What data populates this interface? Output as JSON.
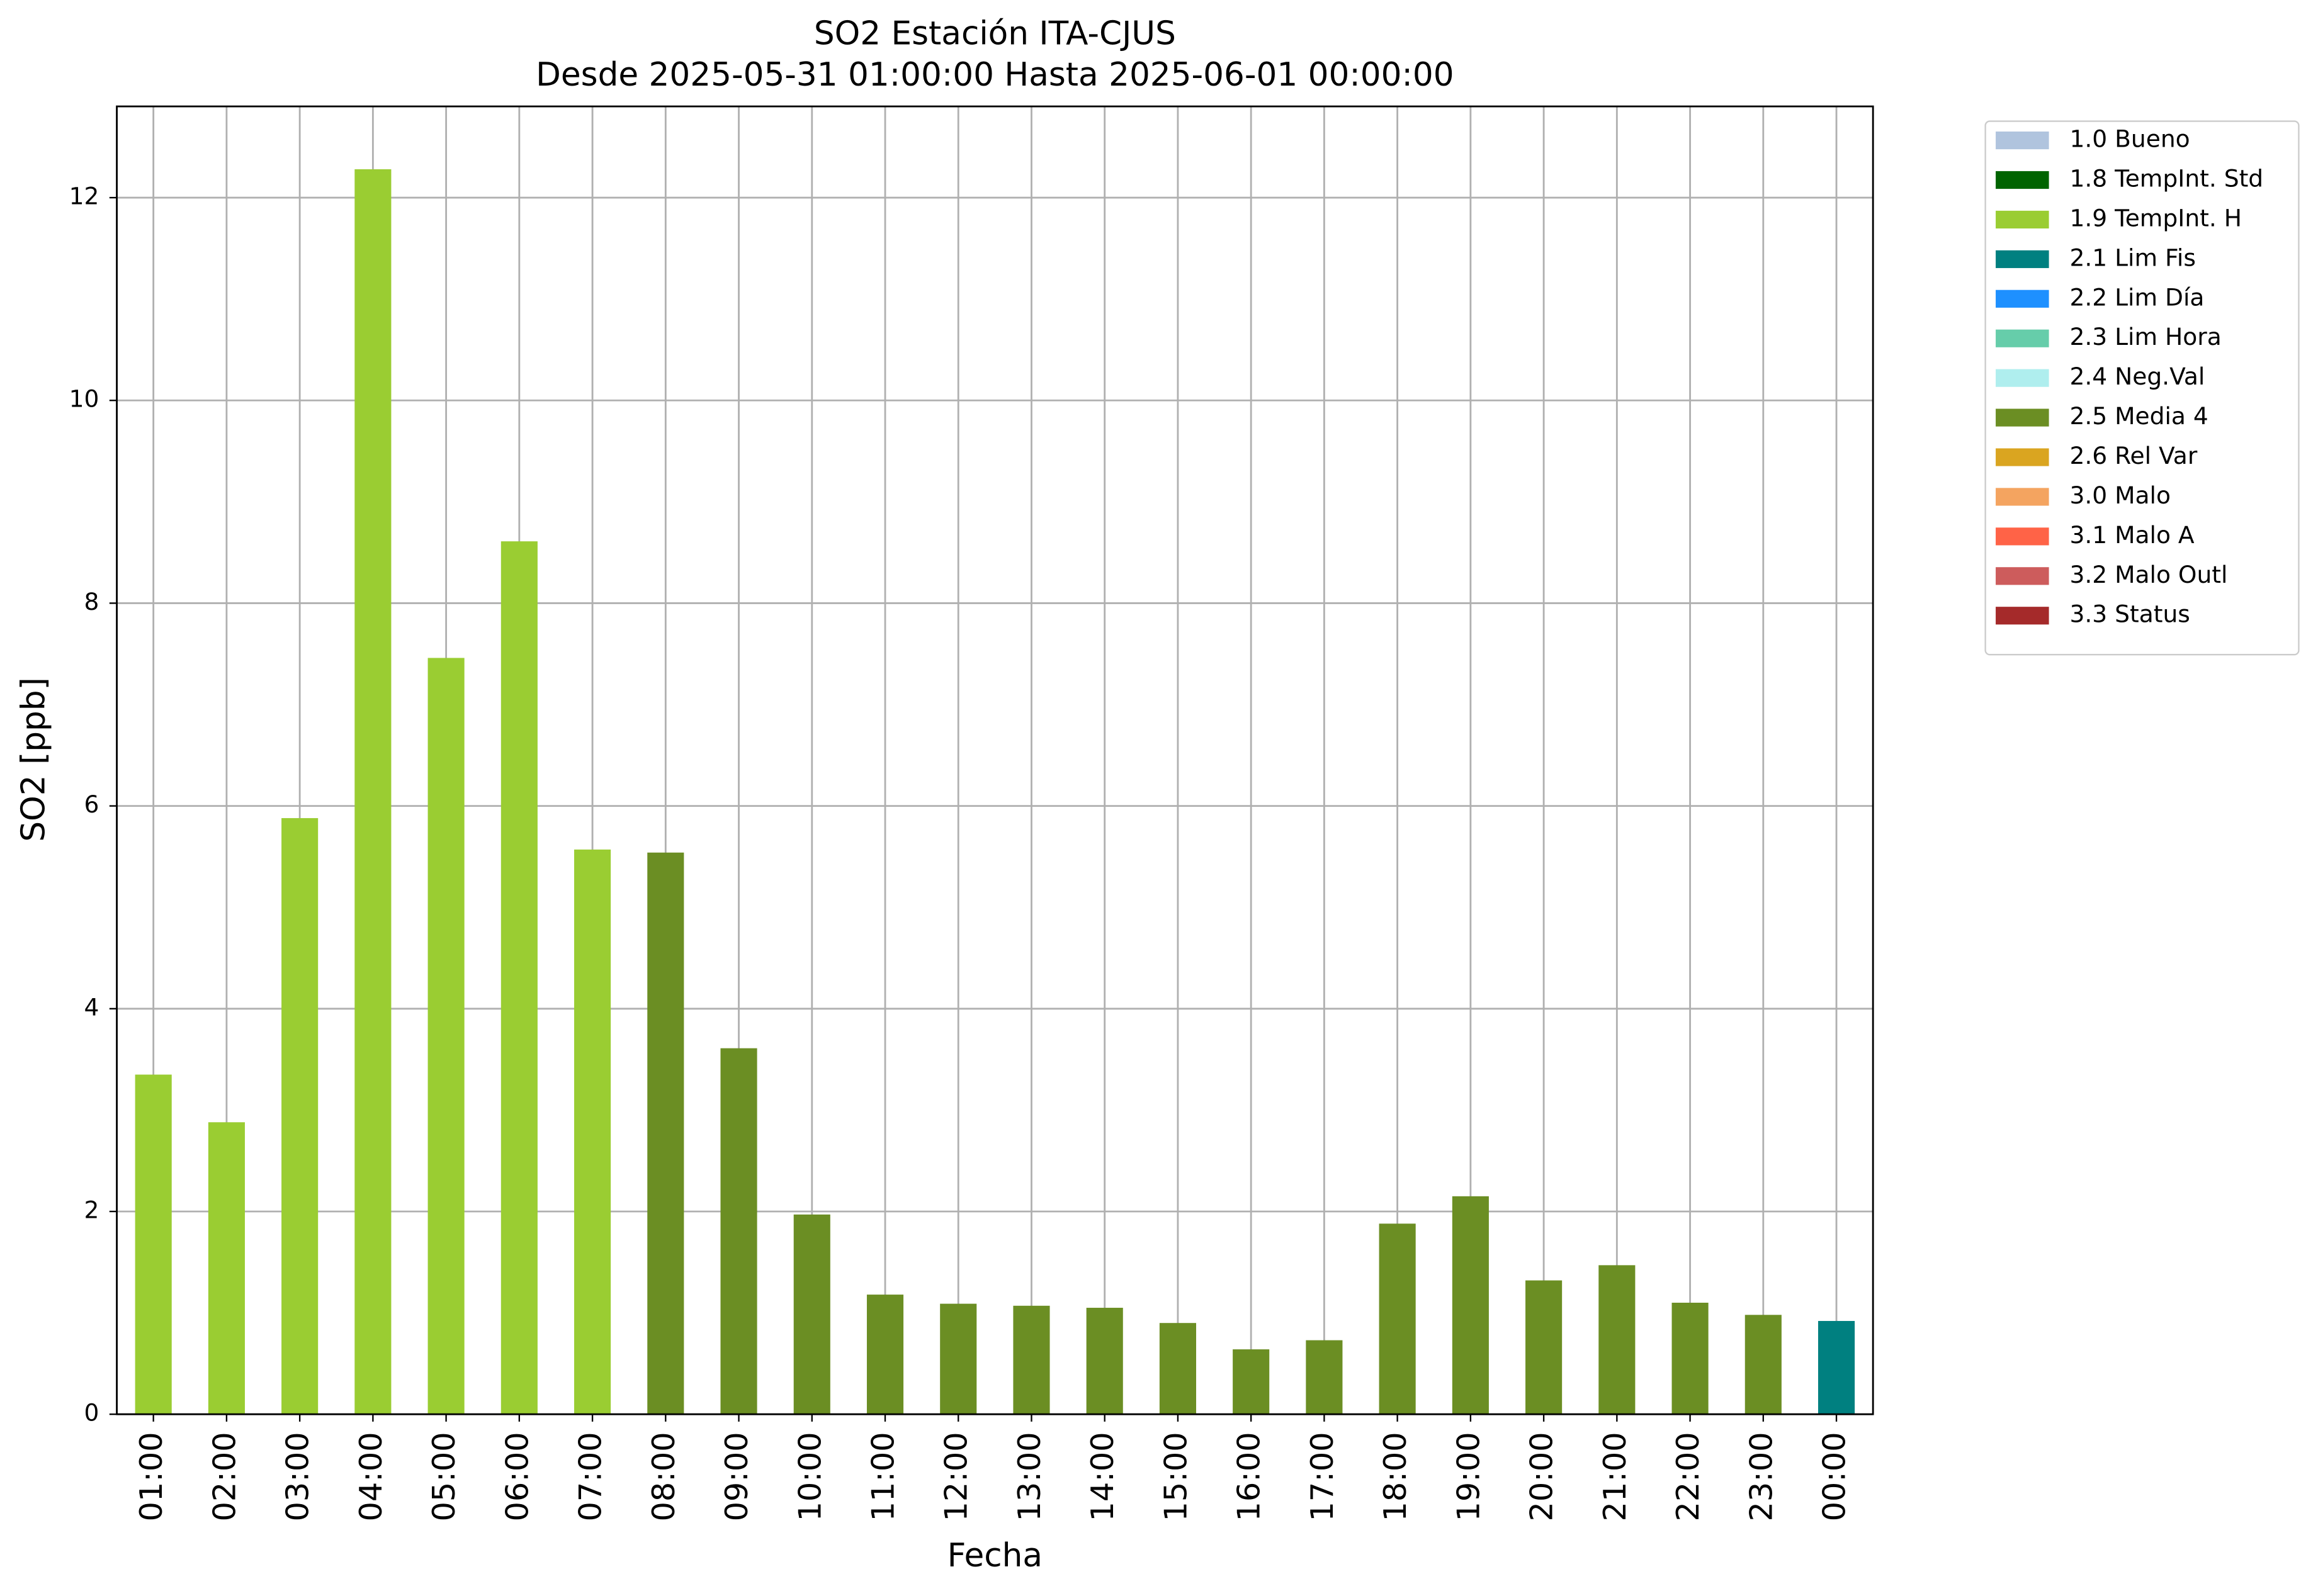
{
  "chart_data": {
    "type": "bar",
    "title": "SO2 Estación ITA-CJUS",
    "subtitle": "Desde 2025-05-31 01:00:00 Hasta 2025-06-01 00:00:00",
    "x_label": "Fecha",
    "y_label": "SO2 [ppb]",
    "categories": [
      "01:00",
      "02:00",
      "03:00",
      "04:00",
      "05:00",
      "06:00",
      "07:00",
      "08:00",
      "09:00",
      "10:00",
      "11:00",
      "12:00",
      "13:00",
      "14:00",
      "15:00",
      "16:00",
      "17:00",
      "18:00",
      "19:00",
      "20:00",
      "21:00",
      "22:00",
      "23:00",
      "00:00"
    ],
    "values": [
      3.35,
      2.88,
      5.88,
      12.28,
      7.46,
      8.61,
      5.57,
      5.54,
      3.61,
      1.97,
      1.18,
      1.09,
      1.07,
      1.05,
      0.9,
      0.64,
      0.73,
      1.88,
      2.15,
      1.32,
      1.47,
      1.1,
      0.98,
      0.92
    ],
    "colors": [
      "#9acd32",
      "#9acd32",
      "#9acd32",
      "#9acd32",
      "#9acd32",
      "#9acd32",
      "#9acd32",
      "#6b8e23",
      "#6b8e23",
      "#6b8e23",
      "#6b8e23",
      "#6b8e23",
      "#6b8e23",
      "#6b8e23",
      "#6b8e23",
      "#6b8e23",
      "#6b8e23",
      "#6b8e23",
      "#6b8e23",
      "#6b8e23",
      "#6b8e23",
      "#6b8e23",
      "#6b8e23",
      "#008080"
    ],
    "ylim": [
      0,
      12.9
    ],
    "yticks": [
      0,
      2,
      4,
      6,
      8,
      10,
      12
    ],
    "grid": true,
    "legend_position": "outside-upper-right",
    "legend": [
      {
        "name": "1.0 Bueno",
        "color": "#b0c4de"
      },
      {
        "name": "1.8 TempInt. Std",
        "color": "#006400"
      },
      {
        "name": "1.9 TempInt. H",
        "color": "#9acd32"
      },
      {
        "name": "2.1 Lim Fis",
        "color": "#008080"
      },
      {
        "name": "2.2 Lim Día",
        "color": "#1e90ff"
      },
      {
        "name": "2.3 Lim Hora",
        "color": "#66cdaa"
      },
      {
        "name": "2.4 Neg.Val",
        "color": "#afeeee"
      },
      {
        "name": "2.5 Media 4",
        "color": "#6b8e23"
      },
      {
        "name": "2.6 Rel Var",
        "color": "#daa520"
      },
      {
        "name": "3.0 Malo",
        "color": "#f4a460"
      },
      {
        "name": "3.1 Malo A",
        "color": "#ff6347"
      },
      {
        "name": "3.2 Malo Outl",
        "color": "#cd5c5c"
      },
      {
        "name": "3.3 Status",
        "color": "#a52a2a"
      }
    ]
  }
}
